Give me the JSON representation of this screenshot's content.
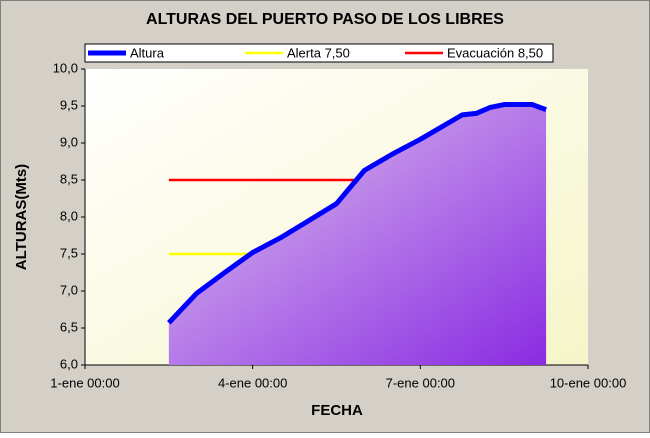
{
  "chart_data": {
    "type": "line",
    "title": "ALTURAS DEL PUERTO PASO DE LOS LIBRES",
    "x_label": "FECHA",
    "y_label": "ALTURAS(Mts)",
    "x": [
      "2-ene 12:00",
      "3-ene 00:00",
      "3-ene 12:00",
      "4-ene 00:00",
      "4-ene 12:00",
      "5-ene 00:00",
      "5-ene 12:00",
      "6-ene 00:00",
      "6-ene 12:00",
      "7-ene 00:00",
      "7-ene 12:00",
      "7-ene 18:00",
      "8-ene 00:00",
      "8-ene 06:00",
      "8-ene 12:00",
      "9-ene 00:00",
      "9-ene 06:00"
    ],
    "series": [
      {
        "name": "Altura",
        "color": "#0000ff",
        "fill": true,
        "values": [
          6.57,
          6.97,
          7.25,
          7.52,
          7.72,
          7.95,
          8.18,
          8.63,
          8.85,
          9.05,
          9.27,
          9.38,
          9.4,
          9.48,
          9.52,
          9.52,
          9.45
        ]
      },
      {
        "name": "Alerta 7,50",
        "color": "#ffff00",
        "values": [
          7.5,
          7.5,
          7.5,
          7.5,
          7.5,
          7.5,
          7.5,
          7.5,
          7.5,
          7.5,
          7.5,
          7.5,
          7.5,
          7.5,
          7.5,
          7.5,
          7.5
        ]
      },
      {
        "name": "Evacuación 8,50",
        "color": "#ff0000",
        "values": [
          8.5,
          8.5,
          8.5,
          8.5,
          8.5,
          8.5,
          8.5,
          8.5,
          8.5,
          8.5,
          8.5,
          8.5,
          8.5,
          8.5,
          8.5,
          8.5,
          8.5
        ]
      }
    ],
    "xlim": [
      "1-ene 00:00",
      "10-ene 00:00"
    ],
    "xticks": [
      "1-ene 00:00",
      "4-ene 00:00",
      "7-ene 00:00",
      "10-ene 00:00"
    ],
    "ylim": [
      6,
      10
    ],
    "yticks": [
      {
        "value": 6,
        "label": "6,0"
      },
      {
        "value": 6.5,
        "label": "6,5"
      },
      {
        "value": 7,
        "label": "7,0"
      },
      {
        "value": 7.5,
        "label": "7,5"
      },
      {
        "value": 8,
        "label": "8,0"
      },
      {
        "value": 8.5,
        "label": "8,5"
      },
      {
        "value": 9,
        "label": "9,0"
      },
      {
        "value": 9.5,
        "label": "9,5"
      },
      {
        "value": 10,
        "label": "10,0"
      }
    ]
  }
}
